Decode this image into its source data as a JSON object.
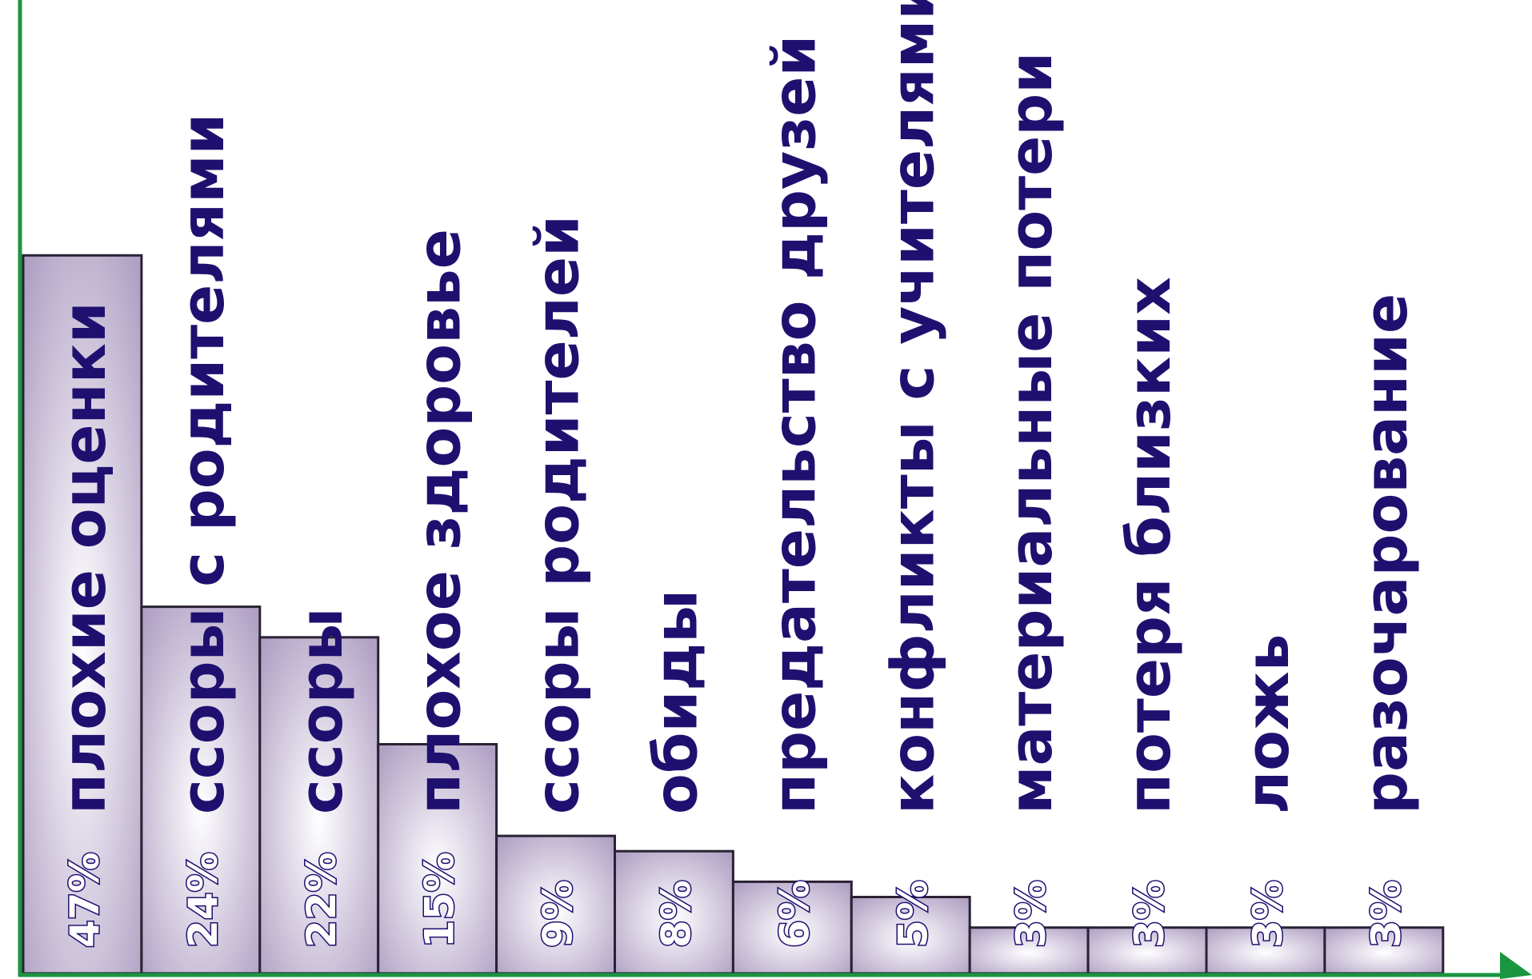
{
  "chart_data": {
    "type": "bar",
    "title": "",
    "xlabel": "",
    "ylabel": "",
    "categories": [
      "плохие оценки",
      "ссоры с родителями",
      "ссоры",
      "плохое здоровье",
      "ссоры родителей",
      "обиды",
      "предательство друзей",
      "конфликты с учителями",
      "материальные потери",
      "потеря близких",
      "ложь",
      "разочарование"
    ],
    "values": [
      47,
      24,
      22,
      15,
      9,
      8,
      6,
      5,
      3,
      3,
      3,
      3
    ],
    "value_labels": [
      "47%",
      "24%",
      "22%",
      "15%",
      "9%",
      "8%",
      "6%",
      "5%",
      "3%",
      "3%",
      "3%",
      "3%"
    ],
    "ylim": [
      0,
      100
    ],
    "grid": false,
    "colors": {
      "axis": "#1a9640",
      "bar_edge": "#2a2233",
      "bar_fill_center": "#ffffff",
      "bar_fill_edge": "#b0a0c4",
      "label": "#1f1070"
    }
  }
}
